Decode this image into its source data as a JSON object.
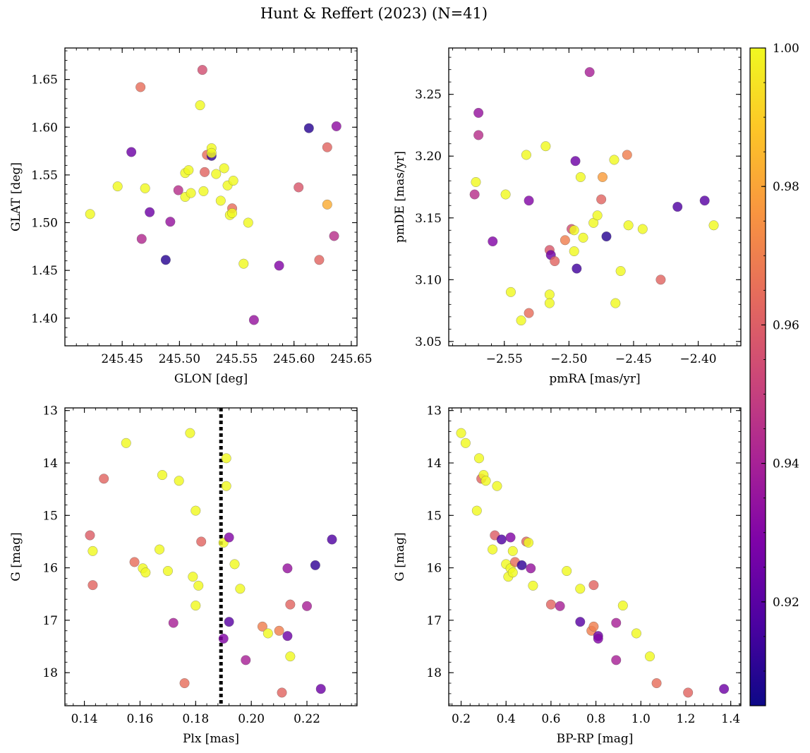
{
  "title": "Hunt & Reffert (2023) (N=41)",
  "colorbar": {
    "range": [
      0.905,
      1.0
    ],
    "ticks": [
      0.92,
      0.94,
      0.96,
      0.98,
      1.0
    ],
    "tick_labels": [
      "0.92",
      "0.94",
      "0.96",
      "0.98",
      "1.00"
    ],
    "colormap": "plasma"
  },
  "chart_data": [
    {
      "type": "scatter",
      "name": "sky",
      "xlabel": "GLON [deg]",
      "ylabel": "GLAT [deg]",
      "xlim": [
        245.4,
        245.655
      ],
      "ylim": [
        1.371,
        1.683
      ],
      "y_inverted": false,
      "xticks": [
        245.45,
        245.5,
        245.55,
        245.6,
        245.65
      ],
      "xtick_labels": [
        "245.45",
        "245.50",
        "245.55",
        "245.60",
        "245.65"
      ],
      "yticks": [
        1.4,
        1.45,
        1.5,
        1.55,
        1.6,
        1.65
      ],
      "ytick_labels": [
        "1.40",
        "1.45",
        "1.50",
        "1.55",
        "1.60",
        "1.65"
      ],
      "points": [
        {
          "x": 245.422,
          "y": 1.509,
          "c": 1.0
        },
        {
          "x": 245.446,
          "y": 1.538,
          "c": 1.0
        },
        {
          "x": 245.458,
          "y": 1.574,
          "c": 0.925
        },
        {
          "x": 245.466,
          "y": 1.642,
          "c": 0.965
        },
        {
          "x": 245.467,
          "y": 1.483,
          "c": 0.943
        },
        {
          "x": 245.47,
          "y": 1.536,
          "c": 1.0
        },
        {
          "x": 245.474,
          "y": 1.511,
          "c": 0.925
        },
        {
          "x": 245.488,
          "y": 1.461,
          "c": 0.91
        },
        {
          "x": 245.492,
          "y": 1.501,
          "c": 0.935
        },
        {
          "x": 245.499,
          "y": 1.534,
          "c": 0.945
        },
        {
          "x": 245.505,
          "y": 1.552,
          "c": 1.0
        },
        {
          "x": 245.505,
          "y": 1.527,
          "c": 1.0
        },
        {
          "x": 245.508,
          "y": 1.555,
          "c": 1.0
        },
        {
          "x": 245.51,
          "y": 1.531,
          "c": 1.0
        },
        {
          "x": 245.518,
          "y": 1.623,
          "c": 1.0
        },
        {
          "x": 245.52,
          "y": 1.66,
          "c": 0.955
        },
        {
          "x": 245.521,
          "y": 1.533,
          "c": 1.0
        },
        {
          "x": 245.522,
          "y": 1.553,
          "c": 0.962
        },
        {
          "x": 245.524,
          "y": 1.571,
          "c": 0.965
        },
        {
          "x": 245.528,
          "y": 1.57,
          "c": 0.912
        },
        {
          "x": 245.528,
          "y": 1.578,
          "c": 1.0
        },
        {
          "x": 245.528,
          "y": 1.573,
          "c": 1.0
        },
        {
          "x": 245.532,
          "y": 1.551,
          "c": 1.0
        },
        {
          "x": 245.536,
          "y": 1.523,
          "c": 1.0
        },
        {
          "x": 245.539,
          "y": 1.557,
          "c": 1.0
        },
        {
          "x": 245.542,
          "y": 1.539,
          "c": 1.0
        },
        {
          "x": 245.544,
          "y": 1.508,
          "c": 1.0
        },
        {
          "x": 245.546,
          "y": 1.515,
          "c": 0.965
        },
        {
          "x": 245.546,
          "y": 1.51,
          "c": 1.0
        },
        {
          "x": 245.547,
          "y": 1.544,
          "c": 1.0
        },
        {
          "x": 245.556,
          "y": 1.457,
          "c": 1.0
        },
        {
          "x": 245.56,
          "y": 1.5,
          "c": 1.0
        },
        {
          "x": 245.565,
          "y": 1.398,
          "c": 0.935
        },
        {
          "x": 245.587,
          "y": 1.455,
          "c": 0.93
        },
        {
          "x": 245.604,
          "y": 1.537,
          "c": 0.958
        },
        {
          "x": 245.613,
          "y": 1.599,
          "c": 0.91
        },
        {
          "x": 245.622,
          "y": 1.461,
          "c": 0.962
        },
        {
          "x": 245.629,
          "y": 1.579,
          "c": 0.962
        },
        {
          "x": 245.629,
          "y": 1.519,
          "c": 0.982
        },
        {
          "x": 245.635,
          "y": 1.486,
          "c": 0.945
        },
        {
          "x": 245.637,
          "y": 1.601,
          "c": 0.933
        }
      ]
    },
    {
      "type": "scatter",
      "name": "proper-motion",
      "xlabel": "pmRA [mas/yr]",
      "ylabel": "pmDE [mas/yr]",
      "xlim": [
        -2.593,
        -2.367
      ],
      "ylim": [
        3.0465,
        3.2875
      ],
      "y_inverted": false,
      "xticks": [
        -2.55,
        -2.5,
        -2.45,
        -2.4
      ],
      "xtick_labels": [
        "−2.55",
        "−2.50",
        "−2.45",
        "−2.40"
      ],
      "yticks": [
        3.05,
        3.1,
        3.15,
        3.2,
        3.25
      ],
      "ytick_labels": [
        "3.05",
        "3.10",
        "3.15",
        "3.20",
        "3.25"
      ],
      "points": [
        {
          "x": -2.572,
          "y": 3.179,
          "c": 1.0
        },
        {
          "x": -2.573,
          "y": 3.169,
          "c": 0.945
        },
        {
          "x": -2.57,
          "y": 3.235,
          "c": 0.935
        },
        {
          "x": -2.57,
          "y": 3.217,
          "c": 0.945
        },
        {
          "x": -2.559,
          "y": 3.131,
          "c": 0.93
        },
        {
          "x": -2.549,
          "y": 3.169,
          "c": 1.0
        },
        {
          "x": -2.545,
          "y": 3.09,
          "c": 1.0
        },
        {
          "x": -2.537,
          "y": 3.067,
          "c": 1.0
        },
        {
          "x": -2.533,
          "y": 3.201,
          "c": 1.0
        },
        {
          "x": -2.531,
          "y": 3.164,
          "c": 0.93
        },
        {
          "x": -2.531,
          "y": 3.073,
          "c": 0.965
        },
        {
          "x": -2.518,
          "y": 3.208,
          "c": 1.0
        },
        {
          "x": -2.515,
          "y": 3.088,
          "c": 1.0
        },
        {
          "x": -2.515,
          "y": 3.081,
          "c": 1.0
        },
        {
          "x": -2.515,
          "y": 3.124,
          "c": 0.958
        },
        {
          "x": -2.514,
          "y": 3.12,
          "c": 0.925
        },
        {
          "x": -2.511,
          "y": 3.115,
          "c": 0.962
        },
        {
          "x": -2.503,
          "y": 3.132,
          "c": 0.97
        },
        {
          "x": -2.498,
          "y": 3.141,
          "c": 0.955
        },
        {
          "x": -2.496,
          "y": 3.14,
          "c": 1.0
        },
        {
          "x": -2.496,
          "y": 3.123,
          "c": 1.0
        },
        {
          "x": -2.495,
          "y": 3.196,
          "c": 0.925
        },
        {
          "x": -2.494,
          "y": 3.109,
          "c": 0.915
        },
        {
          "x": -2.491,
          "y": 3.183,
          "c": 1.0
        },
        {
          "x": -2.489,
          "y": 3.134,
          "c": 1.0
        },
        {
          "x": -2.484,
          "y": 3.268,
          "c": 0.94
        },
        {
          "x": -2.481,
          "y": 3.146,
          "c": 1.0
        },
        {
          "x": -2.478,
          "y": 3.152,
          "c": 1.0
        },
        {
          "x": -2.475,
          "y": 3.165,
          "c": 0.962
        },
        {
          "x": -2.474,
          "y": 3.183,
          "c": 0.978
        },
        {
          "x": -2.471,
          "y": 3.135,
          "c": 0.91
        },
        {
          "x": -2.465,
          "y": 3.197,
          "c": 1.0
        },
        {
          "x": -2.464,
          "y": 3.081,
          "c": 1.0
        },
        {
          "x": -2.46,
          "y": 3.107,
          "c": 1.0
        },
        {
          "x": -2.455,
          "y": 3.201,
          "c": 0.97
        },
        {
          "x": -2.454,
          "y": 3.144,
          "c": 1.0
        },
        {
          "x": -2.443,
          "y": 3.141,
          "c": 1.0
        },
        {
          "x": -2.429,
          "y": 3.1,
          "c": 0.962
        },
        {
          "x": -2.416,
          "y": 3.159,
          "c": 0.918
        },
        {
          "x": -2.395,
          "y": 3.164,
          "c": 0.92
        },
        {
          "x": -2.388,
          "y": 3.144,
          "c": 1.0
        }
      ]
    },
    {
      "type": "scatter",
      "name": "parallax-magnitude",
      "xlabel": "Plx [mas]",
      "ylabel": "G [mag]",
      "xlim": [
        0.133,
        0.238
      ],
      "ylim": [
        18.63,
        12.95
      ],
      "y_inverted": true,
      "xticks": [
        0.14,
        0.16,
        0.18,
        0.2,
        0.22
      ],
      "xtick_labels": [
        "0.14",
        "0.16",
        "0.18",
        "0.20",
        "0.22"
      ],
      "yticks": [
        13,
        14,
        15,
        16,
        17,
        18
      ],
      "ytick_labels": [
        "13",
        "14",
        "15",
        "16",
        "17",
        "18"
      ],
      "reference_line": {
        "x": 0.1891,
        "style": "dotted"
      },
      "points": [
        {
          "x": 0.142,
          "y": 15.38,
          "c": 0.96
        },
        {
          "x": 0.143,
          "y": 16.33,
          "c": 0.962
        },
        {
          "x": 0.143,
          "y": 15.68,
          "c": 1.0
        },
        {
          "x": 0.147,
          "y": 14.3,
          "c": 0.962
        },
        {
          "x": 0.155,
          "y": 13.62,
          "c": 1.0
        },
        {
          "x": 0.158,
          "y": 15.89,
          "c": 0.965
        },
        {
          "x": 0.161,
          "y": 16.01,
          "c": 1.0
        },
        {
          "x": 0.162,
          "y": 16.09,
          "c": 1.0
        },
        {
          "x": 0.167,
          "y": 15.65,
          "c": 1.0
        },
        {
          "x": 0.168,
          "y": 14.23,
          "c": 1.0
        },
        {
          "x": 0.17,
          "y": 16.06,
          "c": 1.0
        },
        {
          "x": 0.172,
          "y": 17.05,
          "c": 0.94
        },
        {
          "x": 0.174,
          "y": 14.34,
          "c": 1.0
        },
        {
          "x": 0.176,
          "y": 18.2,
          "c": 0.965
        },
        {
          "x": 0.178,
          "y": 13.43,
          "c": 1.0
        },
        {
          "x": 0.179,
          "y": 16.17,
          "c": 1.0
        },
        {
          "x": 0.18,
          "y": 16.72,
          "c": 1.0
        },
        {
          "x": 0.18,
          "y": 14.91,
          "c": 1.0
        },
        {
          "x": 0.181,
          "y": 16.34,
          "c": 1.0
        },
        {
          "x": 0.182,
          "y": 15.5,
          "c": 0.962
        },
        {
          "x": 0.19,
          "y": 17.35,
          "c": 0.93
        },
        {
          "x": 0.19,
          "y": 15.52,
          "c": 1.0
        },
        {
          "x": 0.191,
          "y": 13.91,
          "c": 1.0
        },
        {
          "x": 0.191,
          "y": 14.44,
          "c": 1.0
        },
        {
          "x": 0.192,
          "y": 15.42,
          "c": 0.93
        },
        {
          "x": 0.192,
          "y": 17.03,
          "c": 0.92
        },
        {
          "x": 0.194,
          "y": 15.93,
          "c": 1.0
        },
        {
          "x": 0.196,
          "y": 16.4,
          "c": 1.0
        },
        {
          "x": 0.198,
          "y": 17.76,
          "c": 0.94
        },
        {
          "x": 0.204,
          "y": 17.12,
          "c": 0.97
        },
        {
          "x": 0.206,
          "y": 17.25,
          "c": 1.0
        },
        {
          "x": 0.21,
          "y": 17.2,
          "c": 0.97
        },
        {
          "x": 0.211,
          "y": 18.38,
          "c": 0.962
        },
        {
          "x": 0.213,
          "y": 16.01,
          "c": 0.935
        },
        {
          "x": 0.213,
          "y": 17.3,
          "c": 0.925
        },
        {
          "x": 0.214,
          "y": 16.7,
          "c": 0.962
        },
        {
          "x": 0.214,
          "y": 17.69,
          "c": 1.0
        },
        {
          "x": 0.22,
          "y": 16.73,
          "c": 0.94
        },
        {
          "x": 0.223,
          "y": 15.95,
          "c": 0.912
        },
        {
          "x": 0.225,
          "y": 18.31,
          "c": 0.925
        },
        {
          "x": 0.229,
          "y": 15.46,
          "c": 0.918
        }
      ]
    },
    {
      "type": "scatter",
      "name": "color-magnitude",
      "xlabel": "BP-RP [mag]",
      "ylabel": "G [mag]",
      "xlim": [
        0.145,
        1.445
      ],
      "ylim": [
        18.63,
        12.95
      ],
      "y_inverted": true,
      "xticks": [
        0.2,
        0.4,
        0.6,
        0.8,
        1.0,
        1.2,
        1.4
      ],
      "xtick_labels": [
        "0.2",
        "0.4",
        "0.6",
        "0.8",
        "1.0",
        "1.2",
        "1.4"
      ],
      "yticks": [
        13,
        14,
        15,
        16,
        17,
        18
      ],
      "ytick_labels": [
        "13",
        "14",
        "15",
        "16",
        "17",
        "18"
      ],
      "points": [
        {
          "x": 0.2,
          "y": 13.43,
          "c": 1.0
        },
        {
          "x": 0.22,
          "y": 13.62,
          "c": 1.0
        },
        {
          "x": 0.27,
          "y": 14.91,
          "c": 1.0
        },
        {
          "x": 0.28,
          "y": 13.91,
          "c": 1.0
        },
        {
          "x": 0.29,
          "y": 14.3,
          "c": 0.962
        },
        {
          "x": 0.3,
          "y": 14.23,
          "c": 1.0
        },
        {
          "x": 0.31,
          "y": 14.34,
          "c": 1.0
        },
        {
          "x": 0.34,
          "y": 15.65,
          "c": 1.0
        },
        {
          "x": 0.35,
          "y": 15.38,
          "c": 0.96
        },
        {
          "x": 0.36,
          "y": 14.44,
          "c": 1.0
        },
        {
          "x": 0.38,
          "y": 15.46,
          "c": 0.918
        },
        {
          "x": 0.4,
          "y": 15.93,
          "c": 1.0
        },
        {
          "x": 0.41,
          "y": 16.17,
          "c": 1.0
        },
        {
          "x": 0.42,
          "y": 15.42,
          "c": 0.93
        },
        {
          "x": 0.42,
          "y": 16.01,
          "c": 1.0
        },
        {
          "x": 0.43,
          "y": 16.09,
          "c": 1.0
        },
        {
          "x": 0.43,
          "y": 15.68,
          "c": 1.0
        },
        {
          "x": 0.44,
          "y": 15.89,
          "c": 0.965
        },
        {
          "x": 0.47,
          "y": 15.95,
          "c": 0.912
        },
        {
          "x": 0.49,
          "y": 15.5,
          "c": 0.962
        },
        {
          "x": 0.5,
          "y": 15.52,
          "c": 1.0
        },
        {
          "x": 0.51,
          "y": 16.01,
          "c": 0.935
        },
        {
          "x": 0.52,
          "y": 16.34,
          "c": 1.0
        },
        {
          "x": 0.6,
          "y": 16.7,
          "c": 0.962
        },
        {
          "x": 0.64,
          "y": 16.73,
          "c": 0.94
        },
        {
          "x": 0.67,
          "y": 16.06,
          "c": 1.0
        },
        {
          "x": 0.73,
          "y": 17.03,
          "c": 0.92
        },
        {
          "x": 0.73,
          "y": 16.4,
          "c": 1.0
        },
        {
          "x": 0.78,
          "y": 17.2,
          "c": 0.97
        },
        {
          "x": 0.79,
          "y": 17.12,
          "c": 0.97
        },
        {
          "x": 0.79,
          "y": 16.33,
          "c": 0.962
        },
        {
          "x": 0.81,
          "y": 17.3,
          "c": 0.925
        },
        {
          "x": 0.81,
          "y": 17.35,
          "c": 0.93
        },
        {
          "x": 0.89,
          "y": 17.05,
          "c": 0.94
        },
        {
          "x": 0.89,
          "y": 17.76,
          "c": 0.94
        },
        {
          "x": 0.92,
          "y": 16.72,
          "c": 1.0
        },
        {
          "x": 0.98,
          "y": 17.25,
          "c": 1.0
        },
        {
          "x": 1.04,
          "y": 17.69,
          "c": 1.0
        },
        {
          "x": 1.07,
          "y": 18.2,
          "c": 0.965
        },
        {
          "x": 1.21,
          "y": 18.38,
          "c": 0.962
        },
        {
          "x": 1.37,
          "y": 18.31,
          "c": 0.925
        }
      ]
    }
  ]
}
